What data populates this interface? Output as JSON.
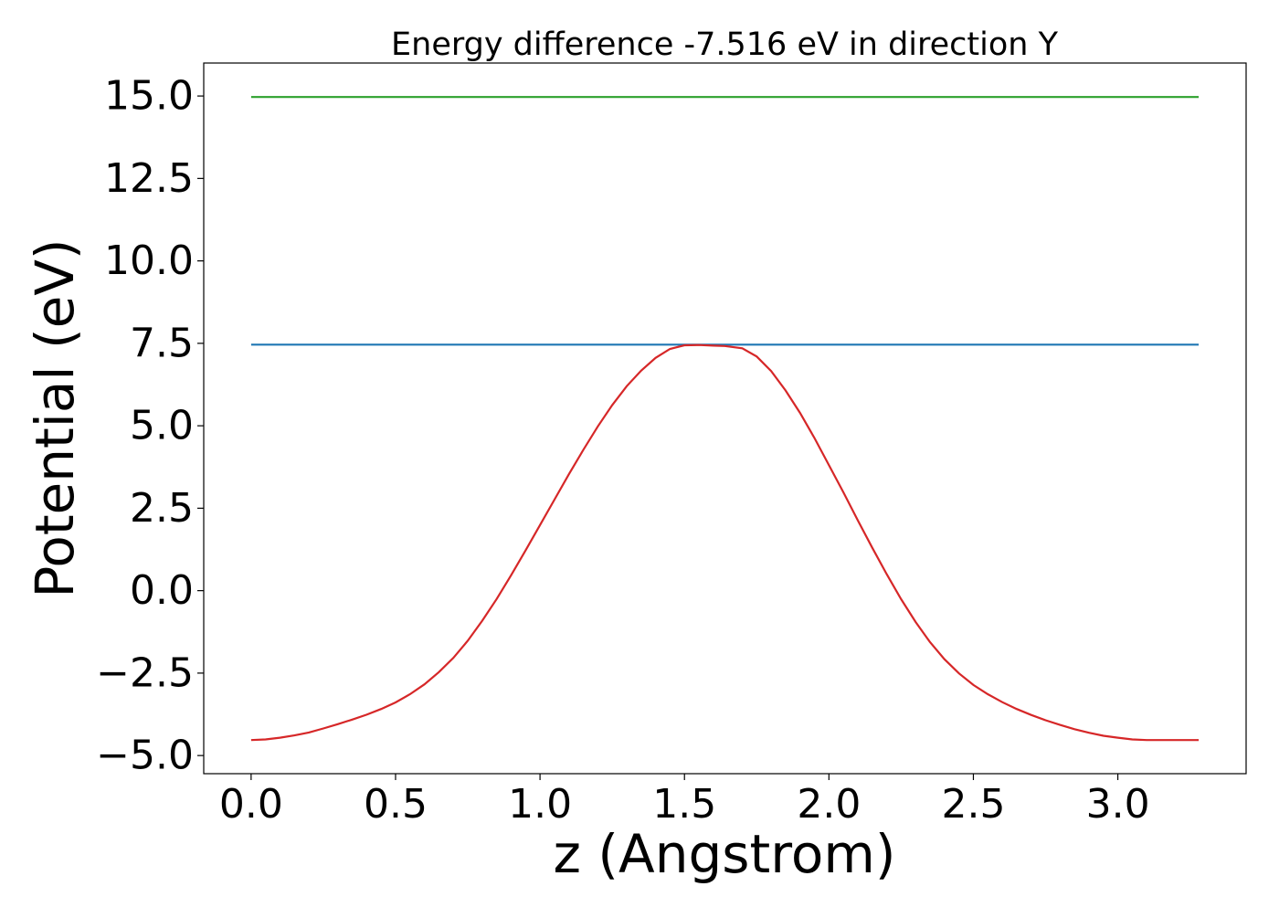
{
  "chart_data": {
    "type": "line",
    "title": "Energy difference -7.516 eV in direction Y",
    "xlabel": "z (Angstrom)",
    "ylabel": "Potential (eV)",
    "xlim": [
      -0.164,
      3.444
    ],
    "ylim": [
      -5.55,
      16.0
    ],
    "x_ticks": [
      0.0,
      0.5,
      1.0,
      1.5,
      2.0,
      2.5,
      3.0
    ],
    "x_tick_labels": [
      "0.0",
      "0.5",
      "1.0",
      "1.5",
      "2.0",
      "2.5",
      "3.0"
    ],
    "y_ticks": [
      -5.0,
      -2.5,
      0.0,
      2.5,
      5.0,
      7.5,
      10.0,
      12.5,
      15.0
    ],
    "y_tick_labels": [
      "−5.0",
      "−2.5",
      "0.0",
      "2.5",
      "5.0",
      "7.5",
      "10.0",
      "12.5",
      "15.0"
    ],
    "grid": false,
    "legend": false,
    "series": [
      {
        "color": "#2ca02c",
        "x": [
          0.0,
          3.28
        ],
        "y": [
          14.97,
          14.97
        ]
      },
      {
        "color": "#1f77b4",
        "x": [
          0.0,
          3.28
        ],
        "y": [
          7.46,
          7.46
        ]
      },
      {
        "color": "#d62728",
        "x": [
          0.0,
          0.05,
          0.1,
          0.15,
          0.2,
          0.25,
          0.3,
          0.35,
          0.4,
          0.45,
          0.5,
          0.55,
          0.6,
          0.65,
          0.7,
          0.75,
          0.8,
          0.85,
          0.9,
          0.95,
          1.0,
          1.05,
          1.1,
          1.15,
          1.2,
          1.25,
          1.3,
          1.35,
          1.4,
          1.45,
          1.5,
          1.55,
          1.6,
          1.64,
          1.7,
          1.75,
          1.8,
          1.85,
          1.9,
          1.95,
          2.0,
          2.05,
          2.1,
          2.15,
          2.2,
          2.25,
          2.3,
          2.35,
          2.4,
          2.45,
          2.5,
          2.55,
          2.6,
          2.65,
          2.7,
          2.75,
          2.8,
          2.85,
          2.9,
          2.95,
          3.0,
          3.05,
          3.1,
          3.15,
          3.2,
          3.25,
          3.28
        ],
        "y": [
          -4.53,
          -4.51,
          -4.46,
          -4.39,
          -4.3,
          -4.18,
          -4.05,
          -3.91,
          -3.76,
          -3.59,
          -3.39,
          -3.14,
          -2.84,
          -2.47,
          -2.04,
          -1.52,
          -0.91,
          -0.25,
          0.47,
          1.22,
          1.99,
          2.76,
          3.53,
          4.27,
          4.98,
          5.63,
          6.2,
          6.67,
          7.06,
          7.33,
          7.44,
          7.45,
          7.43,
          7.42,
          7.35,
          7.1,
          6.66,
          6.07,
          5.39,
          4.63,
          3.81,
          2.98,
          2.13,
          1.3,
          0.5,
          -0.26,
          -0.95,
          -1.56,
          -2.08,
          -2.51,
          -2.86,
          -3.14,
          -3.38,
          -3.59,
          -3.77,
          -3.93,
          -4.07,
          -4.2,
          -4.31,
          -4.4,
          -4.46,
          -4.51,
          -4.53,
          -4.53,
          -4.53,
          -4.53,
          -4.53
        ]
      }
    ]
  }
}
